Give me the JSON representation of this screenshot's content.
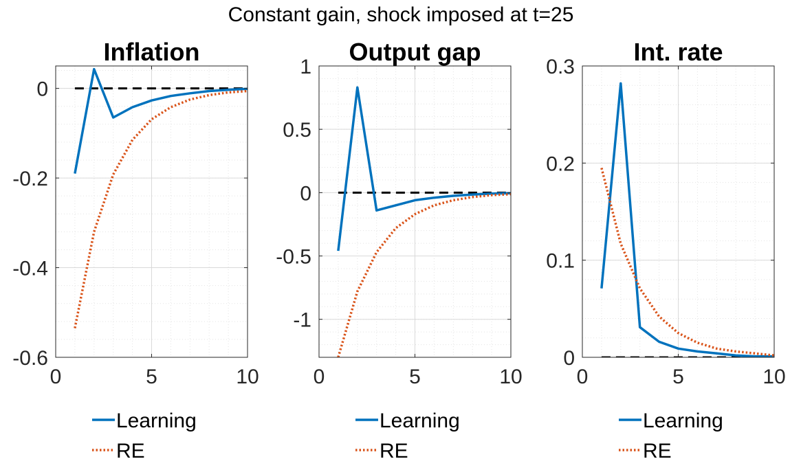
{
  "figure": {
    "title": "Constant gain, shock imposed at t=25"
  },
  "colors": {
    "learning": "#0072BD",
    "re": "#D95319",
    "zero_line": "#000000",
    "grid": "#d9d9d9"
  },
  "chart_data": [
    {
      "type": "line",
      "title": "Inflation",
      "xlabel": "",
      "ylabel": "",
      "xlim": [
        0,
        10
      ],
      "ylim": [
        -0.6,
        0.05
      ],
      "xticks": [
        0,
        5,
        10
      ],
      "yticks": [
        -0.6,
        -0.4,
        -0.2,
        0
      ],
      "ytick_labels": [
        "-0.6",
        "-0.4",
        "-0.2",
        "0"
      ],
      "xtick_labels": [
        "0",
        "5",
        "10"
      ],
      "grid": true,
      "minor_grid": true,
      "zero_line": true,
      "legend_position": "below",
      "x": [
        1,
        2,
        3,
        4,
        5,
        6,
        7,
        8,
        9,
        10
      ],
      "series": [
        {
          "name": "Learning",
          "style": "solid",
          "values": [
            -0.19,
            0.043,
            -0.065,
            -0.042,
            -0.027,
            -0.017,
            -0.011,
            -0.006,
            -0.003,
            -0.001
          ]
        },
        {
          "name": "RE",
          "style": "dotted",
          "values": [
            -0.535,
            -0.32,
            -0.192,
            -0.115,
            -0.069,
            -0.042,
            -0.025,
            -0.015,
            -0.009,
            -0.006
          ]
        }
      ]
    },
    {
      "type": "line",
      "title": "Output gap",
      "xlabel": "",
      "ylabel": "",
      "xlim": [
        0,
        10
      ],
      "ylim": [
        -1.3,
        1.0
      ],
      "xticks": [
        0,
        5,
        10
      ],
      "yticks": [
        -1,
        -0.5,
        0,
        0.5,
        1
      ],
      "ytick_labels": [
        "-1",
        "-0.5",
        "0",
        "0.5",
        "1"
      ],
      "xtick_labels": [
        "0",
        "5",
        "10"
      ],
      "grid": true,
      "minor_grid": true,
      "zero_line": true,
      "legend_position": "below",
      "x": [
        1,
        2,
        3,
        4,
        5,
        6,
        7,
        8,
        9,
        10
      ],
      "series": [
        {
          "name": "Learning",
          "style": "solid",
          "values": [
            -0.46,
            0.83,
            -0.14,
            -0.1,
            -0.06,
            -0.04,
            -0.025,
            -0.015,
            -0.008,
            -0.004
          ]
        },
        {
          "name": "RE",
          "style": "dotted",
          "values": [
            -1.3,
            -0.78,
            -0.47,
            -0.28,
            -0.17,
            -0.1,
            -0.06,
            -0.035,
            -0.02,
            -0.012
          ]
        }
      ]
    },
    {
      "type": "line",
      "title": "Int. rate",
      "xlabel": "",
      "ylabel": "",
      "xlim": [
        0,
        10
      ],
      "ylim": [
        0,
        0.3
      ],
      "xticks": [
        0,
        5,
        10
      ],
      "yticks": [
        0,
        0.1,
        0.2,
        0.3
      ],
      "ytick_labels": [
        "0",
        "0.1",
        "0.2",
        "0.3"
      ],
      "xtick_labels": [
        "0",
        "5",
        "10"
      ],
      "grid": true,
      "minor_grid": true,
      "zero_line": true,
      "legend_position": "below",
      "x": [
        1,
        2,
        3,
        4,
        5,
        6,
        7,
        8,
        9,
        10
      ],
      "series": [
        {
          "name": "Learning",
          "style": "solid",
          "values": [
            0.071,
            0.282,
            0.031,
            0.016,
            0.009,
            0.006,
            0.004,
            0.002,
            0.001,
            0.001
          ]
        },
        {
          "name": "RE",
          "style": "dotted",
          "values": [
            0.195,
            0.117,
            0.071,
            0.042,
            0.025,
            0.015,
            0.009,
            0.006,
            0.004,
            0.002
          ]
        }
      ]
    }
  ]
}
